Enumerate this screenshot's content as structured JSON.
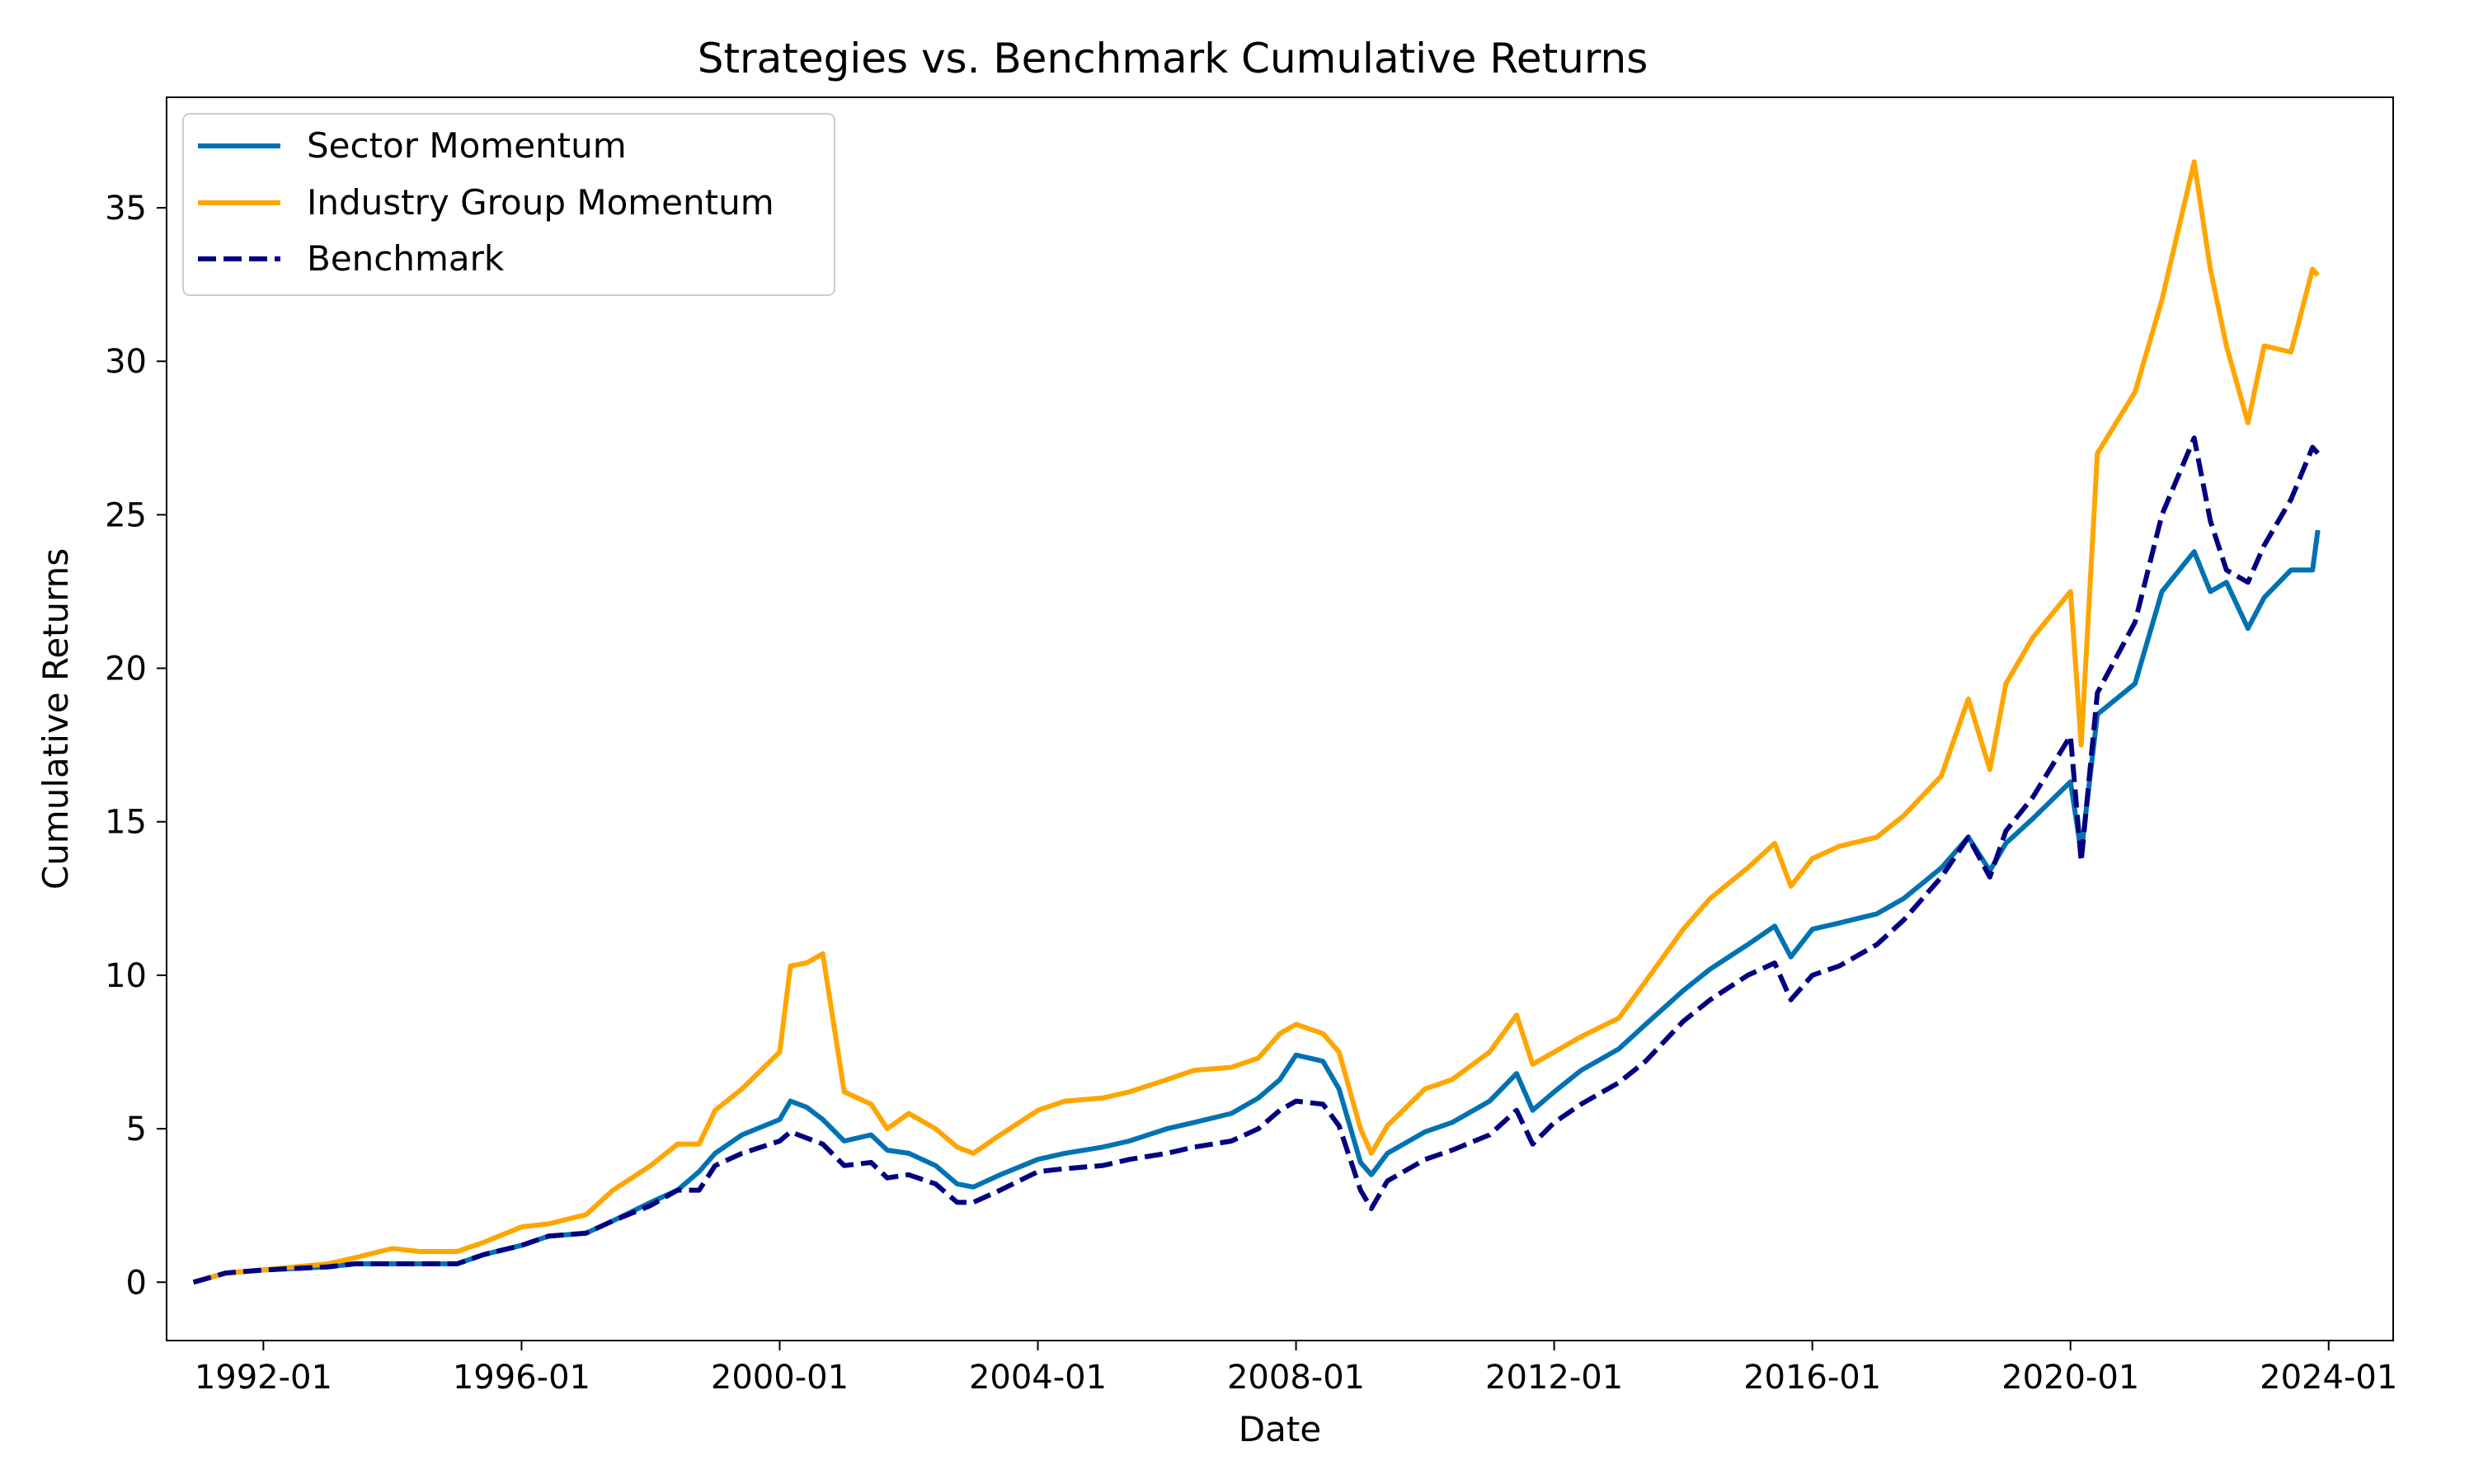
{
  "chart_data": {
    "type": "line",
    "title": "Strategies vs. Benchmark Cumulative Returns",
    "xlabel": "Date",
    "ylabel": "Cumulative Returns",
    "x_range": [
      "1990-07",
      "2025-01"
    ],
    "ylim": [
      -1.9,
      38.6
    ],
    "x_ticks": [
      "1992-01",
      "1996-01",
      "2000-01",
      "2004-01",
      "2008-01",
      "2012-01",
      "2016-01",
      "2020-01",
      "2024-01"
    ],
    "y_ticks": [
      0,
      5,
      10,
      15,
      20,
      25,
      30,
      35
    ],
    "grid": false,
    "legend_position": "top-left",
    "x": [
      "1990-12",
      "1991-06",
      "1992-01",
      "1993-01",
      "1993-06",
      "1994-01",
      "1994-06",
      "1995-01",
      "1995-06",
      "1996-01",
      "1996-06",
      "1997-01",
      "1997-06",
      "1998-01",
      "1998-06",
      "1998-10",
      "1999-01",
      "1999-06",
      "2000-01",
      "2000-03",
      "2000-06",
      "2000-09",
      "2001-01",
      "2001-06",
      "2001-09",
      "2002-01",
      "2002-06",
      "2002-10",
      "2003-01",
      "2003-06",
      "2004-01",
      "2004-06",
      "2005-01",
      "2005-06",
      "2006-01",
      "2006-06",
      "2007-01",
      "2007-06",
      "2007-10",
      "2008-01",
      "2008-06",
      "2008-09",
      "2009-01",
      "2009-03",
      "2009-06",
      "2010-01",
      "2010-06",
      "2011-01",
      "2011-06",
      "2011-09",
      "2012-01",
      "2012-06",
      "2013-01",
      "2013-06",
      "2014-01",
      "2014-06",
      "2015-01",
      "2015-06",
      "2015-09",
      "2016-01",
      "2016-06",
      "2017-01",
      "2017-06",
      "2018-01",
      "2018-06",
      "2018-10",
      "2019-01",
      "2019-06",
      "2020-01",
      "2020-03",
      "2020-06",
      "2021-01",
      "2021-06",
      "2021-12",
      "2022-03",
      "2022-06",
      "2022-10",
      "2023-01",
      "2023-06",
      "2023-10",
      "2023-11"
    ],
    "series": [
      {
        "name": "Sector Momentum",
        "color": "#0072b2",
        "dash": "solid",
        "values": [
          0,
          0.3,
          0.4,
          0.5,
          0.6,
          0.6,
          0.6,
          0.6,
          0.9,
          1.2,
          1.5,
          1.6,
          2,
          2.6,
          3,
          3.6,
          4.2,
          4.8,
          5.3,
          5.9,
          5.7,
          5.3,
          4.6,
          4.8,
          4.3,
          4.2,
          3.8,
          3.2,
          3.1,
          3.5,
          4,
          4.2,
          4.4,
          4.6,
          5,
          5.2,
          5.5,
          6,
          6.6,
          7.4,
          7.2,
          6.3,
          3.9,
          3.5,
          4.2,
          4.9,
          5.2,
          5.9,
          6.8,
          5.6,
          6.2,
          6.9,
          7.6,
          8.4,
          9.5,
          10.2,
          11,
          11.6,
          10.6,
          11.5,
          11.7,
          12,
          12.5,
          13.5,
          14.5,
          13.4,
          14.3,
          15.1,
          16.3,
          14,
          18.5,
          19.5,
          22.5,
          23.8,
          22.5,
          22.8,
          21.3,
          22.3,
          23.2,
          23.2,
          24.5
        ]
      },
      {
        "name": "Industry Group Momentum",
        "color": "#ffa500",
        "dash": "solid",
        "values": [
          0,
          0.3,
          0.4,
          0.6,
          0.8,
          1.1,
          1,
          1,
          1.3,
          1.8,
          1.9,
          2.2,
          3,
          3.8,
          4.5,
          4.5,
          5.6,
          6.3,
          7.5,
          10.3,
          10.4,
          10.7,
          6.2,
          5.8,
          5,
          5.5,
          5,
          4.4,
          4.2,
          4.8,
          5.6,
          5.9,
          6,
          6.2,
          6.6,
          6.9,
          7,
          7.3,
          8.1,
          8.4,
          8.1,
          7.5,
          5,
          4.2,
          5.1,
          6.3,
          6.6,
          7.5,
          8.7,
          7.1,
          7.5,
          8,
          8.6,
          9.8,
          11.5,
          12.5,
          13.5,
          14.3,
          12.9,
          13.8,
          14.2,
          14.5,
          15.2,
          16.5,
          19,
          16.7,
          19.5,
          21,
          22.5,
          17.5,
          27,
          29,
          32,
          36.5,
          33,
          30.5,
          28,
          30.5,
          30.3,
          33,
          32.8
        ]
      },
      {
        "name": "Benchmark",
        "color": "#000080",
        "dash": "dashed",
        "values": [
          0,
          0.3,
          0.4,
          0.5,
          0.6,
          0.6,
          0.6,
          0.6,
          0.9,
          1.2,
          1.5,
          1.6,
          2,
          2.5,
          3,
          3,
          3.8,
          4.2,
          4.6,
          4.9,
          4.7,
          4.5,
          3.8,
          3.9,
          3.4,
          3.5,
          3.2,
          2.6,
          2.6,
          3,
          3.6,
          3.7,
          3.8,
          4,
          4.2,
          4.4,
          4.6,
          5,
          5.6,
          5.9,
          5.8,
          5.1,
          3,
          2.4,
          3.3,
          4,
          4.3,
          4.8,
          5.6,
          4.5,
          5.2,
          5.8,
          6.5,
          7.2,
          8.5,
          9.2,
          10,
          10.4,
          9.2,
          10,
          10.3,
          11,
          11.8,
          13.2,
          14.5,
          13.2,
          14.7,
          15.8,
          17.8,
          13.7,
          19.2,
          21.5,
          25,
          27.5,
          24.8,
          23.2,
          22.8,
          24,
          25.5,
          27.2,
          27
        ]
      }
    ]
  }
}
